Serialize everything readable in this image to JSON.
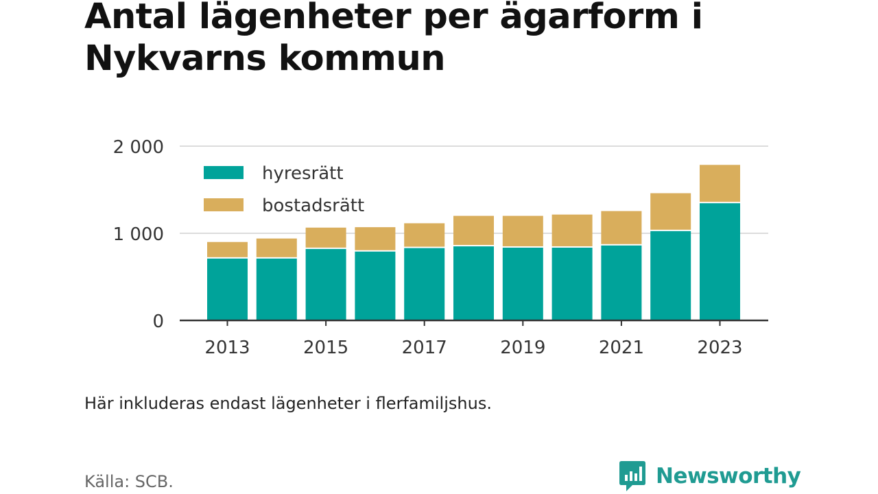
{
  "title": "Antal lägenheter per ägarform i Nykvarns kommun",
  "note": "Här inkluderas endast lägenheter i flerfamiljshus.",
  "source": "Källa: SCB.",
  "brand": {
    "name": "Newsworthy",
    "icon": "newsworthy-logo-icon",
    "color": "#1f9b92"
  },
  "chart_data": {
    "type": "bar",
    "stacked": true,
    "categories": [
      "2013",
      "2014",
      "2015",
      "2016",
      "2017",
      "2018",
      "2019",
      "2020",
      "2021",
      "2022",
      "2023"
    ],
    "x_tick_labels": [
      "2013",
      "2015",
      "2017",
      "2019",
      "2021",
      "2023"
    ],
    "series": [
      {
        "name": "hyresrätt",
        "color": "#00a39a",
        "values": [
          710,
          710,
          820,
          790,
          830,
          850,
          835,
          835,
          860,
          1025,
          1345
        ]
      },
      {
        "name": "bostadsrätt",
        "color": "#d9ae5c",
        "values": [
          190,
          230,
          245,
          280,
          285,
          350,
          365,
          380,
          395,
          435,
          440
        ]
      }
    ],
    "ylim": [
      0,
      2000
    ],
    "y_ticks": [
      0,
      1000,
      2000
    ],
    "y_tick_labels": [
      "0",
      "1 000",
      "2 000"
    ],
    "title": "",
    "xlabel": "",
    "ylabel": "",
    "grid": true,
    "legend": "top-left"
  }
}
